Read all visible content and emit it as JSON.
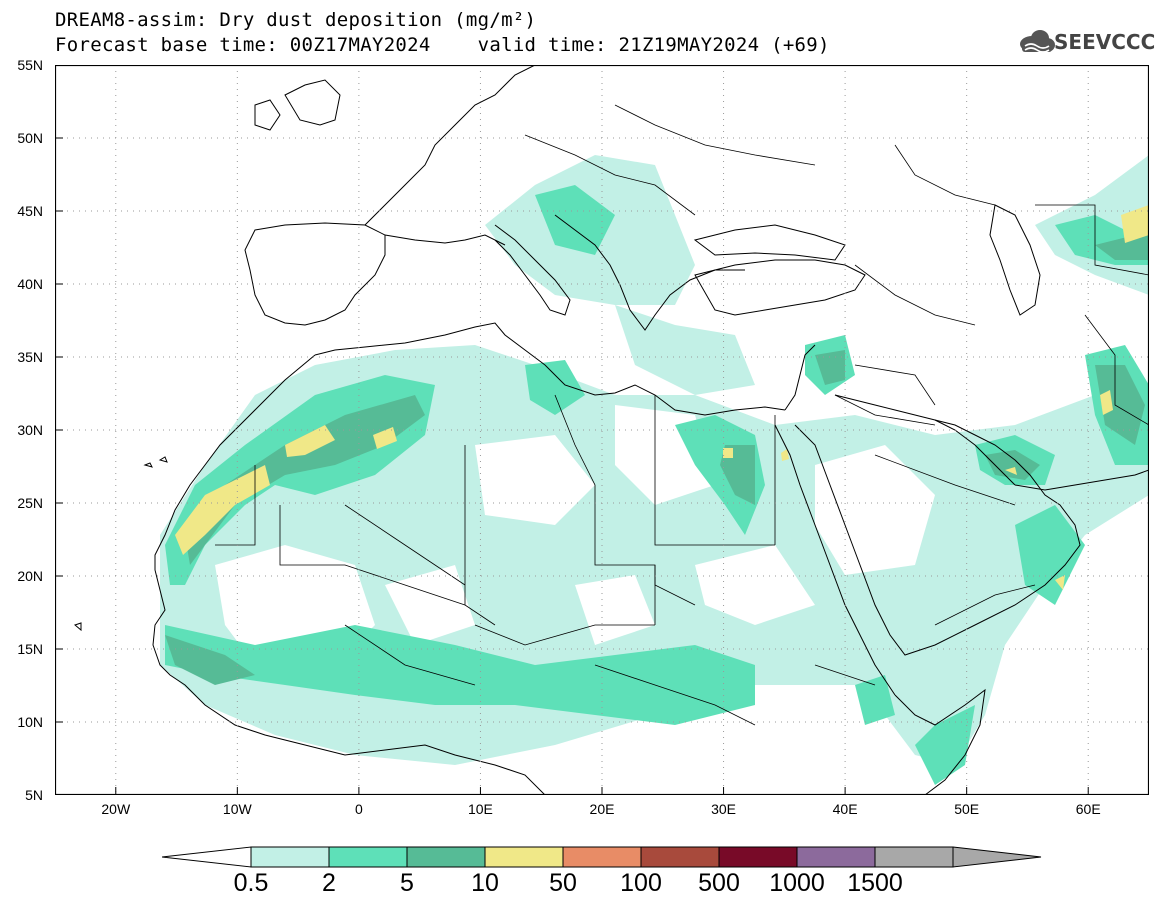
{
  "header": {
    "title_line1": "DREAM8-assim: Dry dust deposition (mg/m²)",
    "title_line2": "Forecast base time: 00Z17MAY2024    valid time: 21Z19MAY2024 (+69)",
    "logo_text": "SEEVCCC"
  },
  "map": {
    "lat_labels": [
      "55N",
      "50N",
      "45N",
      "40N",
      "35N",
      "30N",
      "25N",
      "20N",
      "15N",
      "10N",
      "5N"
    ],
    "lon_labels": [
      "20W",
      "10W",
      "0",
      "10E",
      "20E",
      "30E",
      "40E",
      "50E",
      "60E"
    ],
    "lon_range": [
      -25,
      65
    ],
    "lat_range": [
      5,
      55
    ]
  },
  "legend": {
    "levels": [
      "0.5",
      "2",
      "5",
      "10",
      "50",
      "100",
      "500",
      "1000",
      "1500"
    ],
    "colors": [
      "#c2f0e6",
      "#5ee0b8",
      "#56bb96",
      "#f0e888",
      "#e88c66",
      "#a84a3c",
      "#780a28",
      "#8c6a9c",
      "#a8a8a8"
    ],
    "low_arrow_color": "#ffffff",
    "high_arrow_color": "#a8a8a8"
  }
}
